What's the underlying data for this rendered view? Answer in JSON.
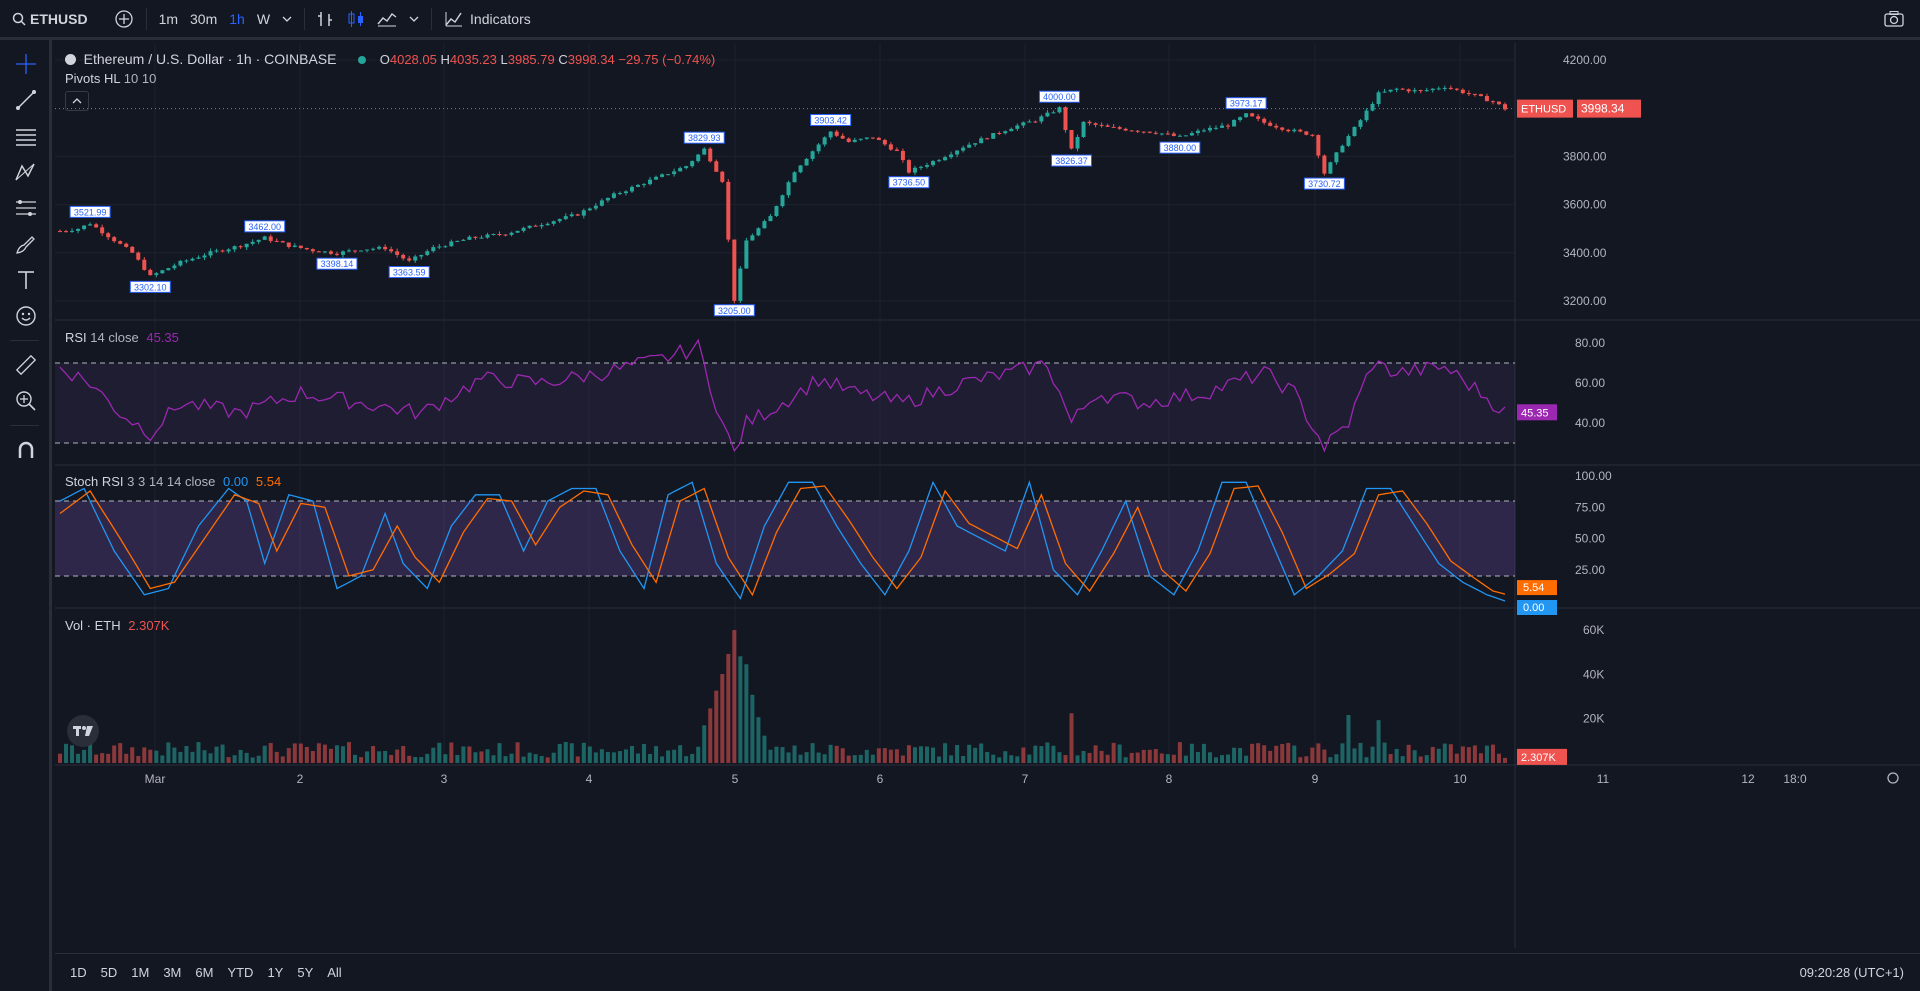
{
  "toolbar": {
    "symbol": "ETHUSD",
    "timeframes": [
      "1m",
      "30m",
      "1h",
      "W"
    ],
    "active_timeframe": "1h",
    "indicators_label": "Indicators"
  },
  "main_legend": {
    "title": "Ethereum / U.S. Dollar · 1h · COINBASE",
    "o_label": "O",
    "o_value": "4028.05",
    "h_label": "H",
    "h_value": "4035.23",
    "l_label": "L",
    "l_value": "3985.79",
    "c_label": "C",
    "c_value": "3998.34",
    "change": "−29.75 (−0.74%)",
    "indicator": "Pivots HL",
    "indicator_params": "10 10"
  },
  "price_axis": {
    "ticks": [
      "4200.00",
      "3800.00",
      "3600.00",
      "3400.00",
      "3200.00"
    ],
    "last_label": "ETHUSD",
    "last_value": "3998.34"
  },
  "pivots": {
    "highs": [
      "3521.99",
      "3462.00",
      "3829.93",
      "3903.42",
      "4000.00",
      "3973.17"
    ],
    "lows": [
      "3302.10",
      "3398.14",
      "3363.59",
      "3205.00",
      "3736.50",
      "3826.37",
      "3880.00",
      "3730.72"
    ]
  },
  "rsi": {
    "label": "RSI",
    "params": "14 close",
    "value": "45.35",
    "ticks": [
      "80.00",
      "60.00",
      "40.00"
    ]
  },
  "stoch": {
    "label": "Stoch RSI",
    "params": "3 3 14 14 close",
    "k_value": "0.00",
    "d_value": "5.54",
    "ticks": [
      "100.00",
      "75.00",
      "50.00",
      "25.00"
    ]
  },
  "volume": {
    "label": "Vol · ETH",
    "value": "2.307K",
    "ticks": [
      "60K",
      "40K",
      "20K"
    ]
  },
  "time_axis": [
    "Mar",
    "2",
    "3",
    "4",
    "5",
    "6",
    "7",
    "8",
    "9",
    "10",
    "11",
    "12",
    "18:0"
  ],
  "ranges": [
    "1D",
    "5D",
    "1M",
    "3M",
    "6M",
    "YTD",
    "1Y",
    "5Y",
    "All"
  ],
  "clock": "09:20:28 (UTC+1)",
  "colors": {
    "up": "#26a69a",
    "down": "#ef5350",
    "rsi": "#9c27b0",
    "stoch_k": "#2196f3",
    "stoch_d": "#ff6d00",
    "accent": "#2962ff"
  },
  "chart_data": {
    "type": "candlestick",
    "timeframe": "1h",
    "price_ylim": [
      3150,
      4250
    ],
    "ohlc_last": {
      "open": 4028.05,
      "high": 4035.23,
      "low": 3985.79,
      "close": 3998.34
    },
    "price_path": [
      [
        0,
        3490
      ],
      [
        3,
        3500
      ],
      [
        5,
        3521.99
      ],
      [
        8,
        3470
      ],
      [
        12,
        3400
      ],
      [
        15,
        3302.1
      ],
      [
        20,
        3360
      ],
      [
        25,
        3400
      ],
      [
        30,
        3430
      ],
      [
        34,
        3462
      ],
      [
        38,
        3430
      ],
      [
        42,
        3410
      ],
      [
        46,
        3398.14
      ],
      [
        50,
        3415
      ],
      [
        54,
        3420
      ],
      [
        58,
        3363.59
      ],
      [
        62,
        3420
      ],
      [
        68,
        3460
      ],
      [
        74,
        3480
      ],
      [
        80,
        3520
      ],
      [
        86,
        3560
      ],
      [
        92,
        3640
      ],
      [
        98,
        3700
      ],
      [
        104,
        3760
      ],
      [
        107,
        3829.93
      ],
      [
        110,
        3700
      ],
      [
        112,
        3205
      ],
      [
        114,
        3450
      ],
      [
        118,
        3550
      ],
      [
        122,
        3740
      ],
      [
        126,
        3850
      ],
      [
        128,
        3903.42
      ],
      [
        131,
        3860
      ],
      [
        135,
        3880
      ],
      [
        139,
        3820
      ],
      [
        141,
        3736.5
      ],
      [
        146,
        3790
      ],
      [
        150,
        3840
      ],
      [
        154,
        3880
      ],
      [
        158,
        3920
      ],
      [
        162,
        3950
      ],
      [
        166,
        4000
      ],
      [
        168,
        3826.37
      ],
      [
        170,
        3940
      ],
      [
        174,
        3920
      ],
      [
        178,
        3910
      ],
      [
        182,
        3900
      ],
      [
        186,
        3880
      ],
      [
        190,
        3910
      ],
      [
        194,
        3930
      ],
      [
        197,
        3973.17
      ],
      [
        200,
        3940
      ],
      [
        204,
        3910
      ],
      [
        208,
        3890
      ],
      [
        210,
        3730.72
      ],
      [
        213,
        3850
      ],
      [
        216,
        3950
      ],
      [
        219,
        4060
      ],
      [
        222,
        4080
      ],
      [
        226,
        4070
      ],
      [
        230,
        4090
      ],
      [
        234,
        4060
      ],
      [
        238,
        4028.05
      ],
      [
        240,
        3998.34
      ]
    ],
    "rsi": {
      "upper_band": 70,
      "lower_band": 30,
      "ylim": [
        20,
        90
      ],
      "path": [
        [
          0,
          68
        ],
        [
          5,
          60
        ],
        [
          10,
          45
        ],
        [
          15,
          35
        ],
        [
          20,
          50
        ],
        [
          30,
          45
        ],
        [
          40,
          55
        ],
        [
          50,
          50
        ],
        [
          60,
          45
        ],
        [
          70,
          62
        ],
        [
          80,
          60
        ],
        [
          90,
          65
        ],
        [
          100,
          72
        ],
        [
          106,
          78
        ],
        [
          110,
          40
        ],
        [
          112,
          25
        ],
        [
          114,
          40
        ],
        [
          120,
          50
        ],
        [
          126,
          62
        ],
        [
          132,
          55
        ],
        [
          140,
          50
        ],
        [
          150,
          60
        ],
        [
          158,
          65
        ],
        [
          164,
          70
        ],
        [
          168,
          40
        ],
        [
          172,
          55
        ],
        [
          180,
          50
        ],
        [
          190,
          55
        ],
        [
          200,
          65
        ],
        [
          205,
          55
        ],
        [
          210,
          28
        ],
        [
          214,
          40
        ],
        [
          218,
          70
        ],
        [
          222,
          65
        ],
        [
          230,
          68
        ],
        [
          236,
          55
        ],
        [
          240,
          45.35
        ]
      ]
    },
    "stoch_rsi": {
      "upper_band": 80,
      "lower_band": 20,
      "ylim": [
        0,
        100
      ],
      "k_path": [
        [
          0,
          80
        ],
        [
          4,
          90
        ],
        [
          9,
          40
        ],
        [
          14,
          5
        ],
        [
          18,
          10
        ],
        [
          23,
          60
        ],
        [
          28,
          90
        ],
        [
          31,
          80
        ],
        [
          34,
          30
        ],
        [
          38,
          85
        ],
        [
          42,
          80
        ],
        [
          46,
          10
        ],
        [
          50,
          20
        ],
        [
          54,
          70
        ],
        [
          57,
          30
        ],
        [
          61,
          10
        ],
        [
          65,
          60
        ],
        [
          69,
          85
        ],
        [
          73,
          85
        ],
        [
          77,
          40
        ],
        [
          81,
          80
        ],
        [
          85,
          90
        ],
        [
          89,
          90
        ],
        [
          93,
          40
        ],
        [
          97,
          10
        ],
        [
          101,
          85
        ],
        [
          105,
          95
        ],
        [
          109,
          30
        ],
        [
          113,
          2
        ],
        [
          117,
          60
        ],
        [
          121,
          95
        ],
        [
          125,
          95
        ],
        [
          129,
          60
        ],
        [
          133,
          30
        ],
        [
          137,
          5
        ],
        [
          141,
          40
        ],
        [
          145,
          95
        ],
        [
          149,
          60
        ],
        [
          153,
          50
        ],
        [
          157,
          40
        ],
        [
          161,
          95
        ],
        [
          165,
          25
        ],
        [
          169,
          5
        ],
        [
          173,
          40
        ],
        [
          177,
          80
        ],
        [
          181,
          20
        ],
        [
          185,
          5
        ],
        [
          189,
          40
        ],
        [
          193,
          95
        ],
        [
          197,
          95
        ],
        [
          201,
          50
        ],
        [
          205,
          5
        ],
        [
          209,
          20
        ],
        [
          213,
          40
        ],
        [
          217,
          90
        ],
        [
          221,
          90
        ],
        [
          225,
          60
        ],
        [
          229,
          30
        ],
        [
          233,
          15
        ],
        [
          237,
          5
        ],
        [
          240,
          0
        ]
      ],
      "d_path": [
        [
          0,
          70
        ],
        [
          5,
          88
        ],
        [
          10,
          50
        ],
        [
          15,
          10
        ],
        [
          19,
          15
        ],
        [
          24,
          50
        ],
        [
          29,
          85
        ],
        [
          33,
          78
        ],
        [
          36,
          40
        ],
        [
          40,
          78
        ],
        [
          44,
          75
        ],
        [
          48,
          20
        ],
        [
          52,
          25
        ],
        [
          56,
          60
        ],
        [
          59,
          35
        ],
        [
          63,
          15
        ],
        [
          67,
          55
        ],
        [
          71,
          82
        ],
        [
          75,
          80
        ],
        [
          79,
          45
        ],
        [
          83,
          75
        ],
        [
          87,
          88
        ],
        [
          91,
          85
        ],
        [
          95,
          45
        ],
        [
          99,
          15
        ],
        [
          103,
          80
        ],
        [
          107,
          90
        ],
        [
          111,
          35
        ],
        [
          115,
          5
        ],
        [
          119,
          55
        ],
        [
          123,
          90
        ],
        [
          127,
          92
        ],
        [
          131,
          65
        ],
        [
          135,
          35
        ],
        [
          139,
          10
        ],
        [
          143,
          35
        ],
        [
          147,
          88
        ],
        [
          151,
          62
        ],
        [
          155,
          52
        ],
        [
          159,
          42
        ],
        [
          163,
          85
        ],
        [
          167,
          30
        ],
        [
          171,
          8
        ],
        [
          175,
          38
        ],
        [
          179,
          75
        ],
        [
          183,
          25
        ],
        [
          187,
          8
        ],
        [
          191,
          38
        ],
        [
          195,
          90
        ],
        [
          199,
          92
        ],
        [
          203,
          55
        ],
        [
          207,
          10
        ],
        [
          211,
          22
        ],
        [
          215,
          38
        ],
        [
          219,
          85
        ],
        [
          223,
          88
        ],
        [
          227,
          62
        ],
        [
          231,
          32
        ],
        [
          235,
          18
        ],
        [
          238,
          8
        ],
        [
          240,
          5.54
        ]
      ]
    },
    "volume": {
      "ylim": [
        0,
        65000
      ],
      "last": 2307,
      "peak": 60000,
      "peak_bar": 112
    }
  }
}
